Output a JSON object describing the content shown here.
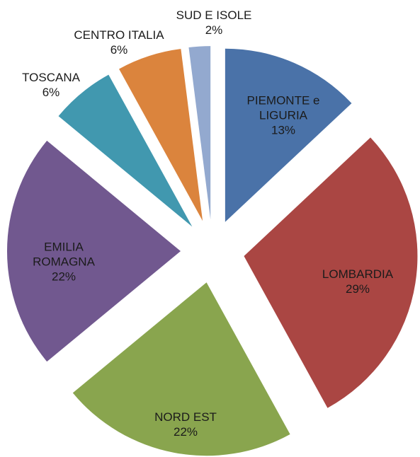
{
  "chart_data": {
    "type": "pie",
    "categories": [
      "PIEMONTE e LIGURIA",
      "LOMBARDIA",
      "NORD EST",
      "EMILIA ROMAGNA",
      "TOSCANA",
      "CENTRO ITALIA",
      "SUD E ISOLE"
    ],
    "values": [
      13,
      29,
      22,
      22,
      6,
      6,
      2
    ],
    "value_labels": [
      "13%",
      "29%",
      "22%",
      "22%",
      "6%",
      "6%",
      "2%"
    ],
    "colors": [
      "#4a72a8",
      "#aa4643",
      "#89a54e",
      "#71588f",
      "#4198af",
      "#db843d",
      "#93a9cf"
    ],
    "exploded": true
  }
}
